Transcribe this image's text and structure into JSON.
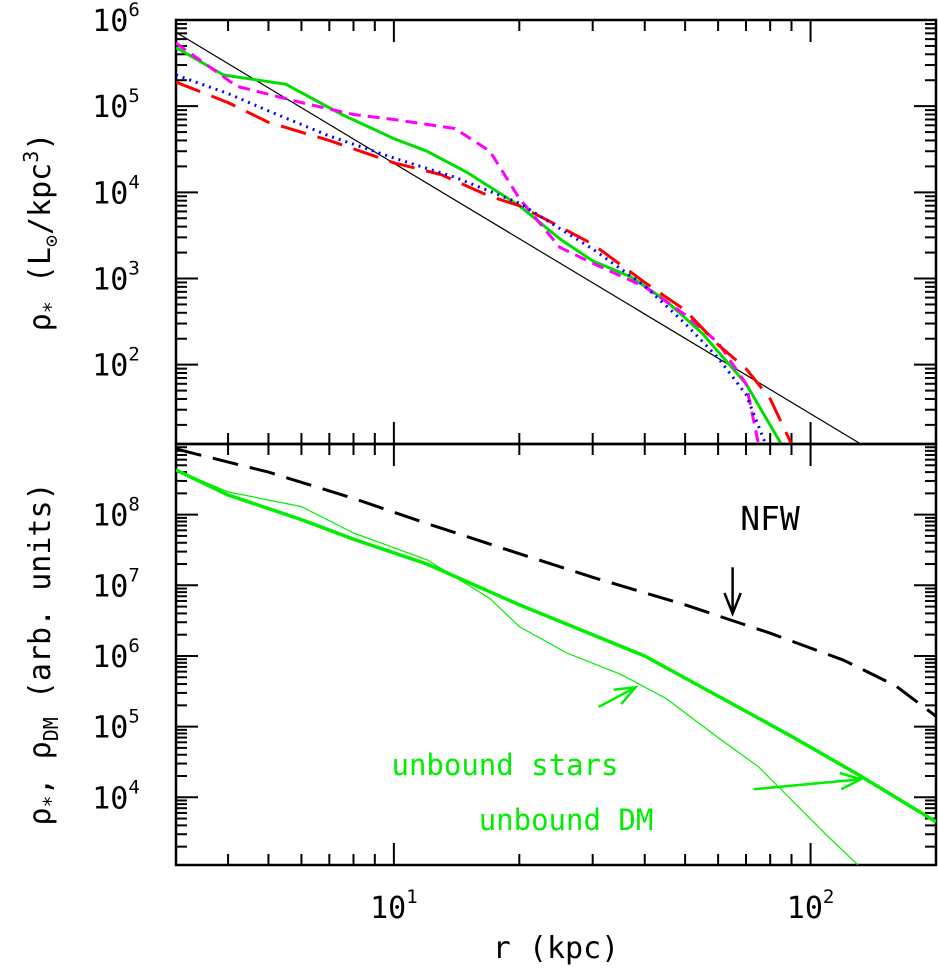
{
  "chart_data": [
    {
      "panel": "top",
      "type": "line",
      "x_scale": "log",
      "y_scale": "log",
      "xlim": [
        3,
        200
      ],
      "ylim": [
        12,
        1000000
      ],
      "xlabel": "r (kpc)",
      "ylabel": {
        "rho": "ρ",
        "sub": "*",
        "rest": " (L",
        "sun": "⊙",
        "unit": "/kpc",
        "sup": "3",
        "close": ")"
      },
      "yticks": [
        {
          "value": 100,
          "base": "10",
          "exp": "2"
        },
        {
          "value": 1000,
          "base": "10",
          "exp": "3"
        },
        {
          "value": 10000,
          "base": "10",
          "exp": "4"
        },
        {
          "value": 100000,
          "base": "10",
          "exp": "5"
        },
        {
          "value": 1000000,
          "base": "10",
          "exp": "6"
        }
      ],
      "series": [
        {
          "color": "#000000",
          "style": "thin",
          "x": [
            3,
            132
          ],
          "y": [
            720000,
            12
          ]
        },
        {
          "color": "#00dd00",
          "style": "solid",
          "x": [
            3,
            3.9,
            5.5,
            7.5,
            10,
            12,
            15,
            20,
            25,
            30,
            37,
            45,
            55,
            70,
            85
          ],
          "y": [
            480000,
            230000,
            180000,
            80000,
            42000,
            30000,
            17000,
            7000,
            2900,
            1600,
            1050,
            550,
            230,
            60,
            12
          ]
        },
        {
          "color": "#ff00ff",
          "style": "dashed",
          "x": [
            3,
            4.2,
            6,
            8,
            10,
            14,
            17,
            20,
            25,
            30,
            40,
            50,
            60,
            70,
            75
          ],
          "y": [
            540000,
            170000,
            110000,
            80000,
            70000,
            55000,
            30000,
            8500,
            2300,
            1500,
            800,
            380,
            180,
            60,
            12
          ]
        },
        {
          "color": "#ff0000",
          "style": "longdash",
          "x": [
            3,
            4,
            5,
            7,
            10,
            13,
            17,
            20,
            25,
            30,
            40,
            50,
            60,
            70,
            80,
            90
          ],
          "y": [
            190000,
            110000,
            65000,
            40000,
            22000,
            16000,
            9000,
            7000,
            4000,
            2500,
            900,
            430,
            170,
            90,
            40,
            12
          ]
        },
        {
          "color": "#0000ff",
          "style": "dotted",
          "x": [
            3,
            4,
            5,
            7,
            10,
            14,
            20,
            25,
            30,
            40,
            50,
            60,
            70,
            78
          ],
          "y": [
            230000,
            140000,
            88000,
            45000,
            25000,
            15000,
            7500,
            3800,
            2200,
            820,
            300,
            120,
            45,
            12
          ]
        }
      ]
    },
    {
      "panel": "bottom",
      "type": "line",
      "x_scale": "log",
      "y_scale": "log",
      "xlim": [
        3,
        200
      ],
      "ylim": [
        1100,
        1000000000
      ],
      "xlabel": "r (kpc)",
      "xticks": [
        {
          "value": 10,
          "base": "10",
          "exp": "1"
        },
        {
          "value": 100,
          "base": "10",
          "exp": "2"
        }
      ],
      "ylabel": {
        "a": "ρ",
        "a_sub": "*",
        "sep": ", ",
        "b": "ρ",
        "b_sub": "DM",
        "rest": " (arb. units)"
      },
      "yticks": [
        {
          "value": 10000,
          "base": "10",
          "exp": "4"
        },
        {
          "value": 100000,
          "base": "10",
          "exp": "5"
        },
        {
          "value": 1000000,
          "base": "10",
          "exp": "6"
        },
        {
          "value": 10000000,
          "base": "10",
          "exp": "7"
        },
        {
          "value": 100000000,
          "base": "10",
          "exp": "8"
        }
      ],
      "series": [
        {
          "color": "#000000",
          "style": "longdash",
          "x": [
            3,
            5,
            8,
            12,
            20,
            30,
            50,
            80,
            120,
            160,
            200
          ],
          "y": [
            850000000,
            400000000,
            170000000,
            75000000,
            28000000,
            13000000,
            5300000,
            2100000,
            870000,
            380000,
            140000
          ]
        },
        {
          "color": "#00ee00",
          "style": "thick",
          "x": [
            3,
            4,
            6,
            8,
            12,
            20,
            30,
            40,
            60,
            90,
            130,
            200
          ],
          "y": [
            430000000,
            190000000,
            85000000,
            45000000,
            20000000,
            5300000,
            2000000,
            1000000,
            270000,
            73000,
            21000,
            4500
          ]
        },
        {
          "color": "#00ee00",
          "style": "thin",
          "x": [
            3,
            4,
            6,
            8,
            12,
            17,
            20,
            26,
            35,
            45,
            60,
            75,
            110,
            130
          ],
          "y": [
            430000000,
            210000000,
            130000000,
            55000000,
            23000000,
            6500000,
            2600000,
            1100000,
            550000,
            250000,
            70000,
            27000,
            2800,
            1100
          ]
        }
      ],
      "annotations": [
        {
          "text": "NFW",
          "arrow_from": [
            65,
            18000000
          ],
          "arrow_to": [
            65,
            4000000
          ]
        },
        {
          "text": "unbound stars",
          "arrow_from": [
            31,
            190000
          ],
          "arrow_to": [
            38,
            360000
          ]
        },
        {
          "text": "unbound DM",
          "arrow_from": [
            73,
            13000
          ],
          "arrow_to": [
            132,
            18000
          ]
        }
      ]
    }
  ]
}
